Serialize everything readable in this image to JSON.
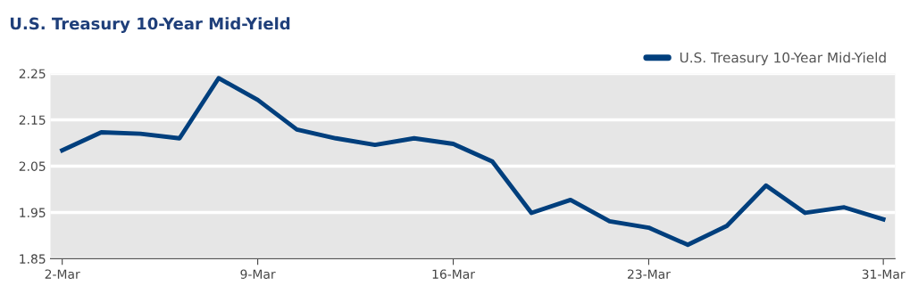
{
  "chart_data": {
    "type": "line",
    "title": "U.S. Treasury 10-Year Mid-Yield",
    "categories": [
      "2-Mar",
      null,
      null,
      null,
      null,
      "9-Mar",
      null,
      null,
      null,
      null,
      "16-Mar",
      null,
      null,
      null,
      null,
      "23-Mar",
      null,
      null,
      null,
      null,
      null,
      "31-Mar"
    ],
    "series": [
      {
        "name": "U.S. Treasury 10-Year Mid-Yield",
        "color": "#003f7d",
        "values": [
          2.084,
          2.123,
          2.12,
          2.11,
          2.24,
          2.193,
          2.129,
          2.11,
          2.096,
          2.11,
          2.098,
          2.06,
          1.949,
          1.977,
          1.931,
          1.917,
          1.88,
          1.921,
          2.008,
          1.949,
          1.961,
          1.935
        ]
      }
    ],
    "ylim": [
      1.85,
      2.25
    ],
    "yticks": [
      {
        "value": 1.85,
        "label": "1.85"
      },
      {
        "value": 1.95,
        "label": "1.95"
      },
      {
        "value": 2.05,
        "label": "2.05"
      },
      {
        "value": 2.15,
        "label": "2.15"
      },
      {
        "value": 2.25,
        "label": "2.25"
      }
    ],
    "grid": "y",
    "legend": "top right",
    "marker": "none",
    "line_style": "solid"
  }
}
